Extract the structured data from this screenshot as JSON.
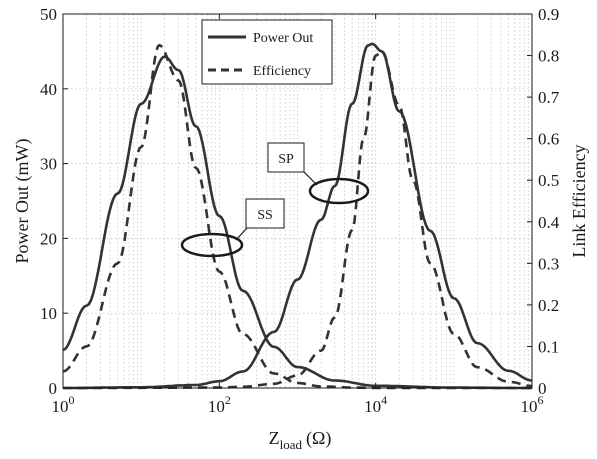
{
  "chart_data": {
    "type": "line",
    "xscale": "log",
    "xlim": [
      1,
      1000000
    ],
    "ylim_left": [
      0,
      50
    ],
    "ylim_right": [
      0,
      0.9
    ],
    "xlabel": "Z",
    "xlabel_sub": "load",
    "xlabel_unit": "(Ω)",
    "ylabel_left": "Power Out (mW)",
    "ylabel_right": "Link Efficiency",
    "x_ticks": [
      {
        "value": 1,
        "base": "10",
        "exp": "0"
      },
      {
        "value": 100,
        "base": "10",
        "exp": "2"
      },
      {
        "value": 10000,
        "base": "10",
        "exp": "4"
      },
      {
        "value": 1000000,
        "base": "10",
        "exp": "6"
      }
    ],
    "y_ticks_left": [
      {
        "value": 0,
        "label": "0"
      },
      {
        "value": 10,
        "label": "10"
      },
      {
        "value": 20,
        "label": "20"
      },
      {
        "value": 30,
        "label": "30"
      },
      {
        "value": 40,
        "label": "40"
      },
      {
        "value": 50,
        "label": "50"
      }
    ],
    "y_ticks_right": [
      {
        "value": 0,
        "label": "0"
      },
      {
        "value": 0.1,
        "label": "0.1"
      },
      {
        "value": 0.2,
        "label": "0.2"
      },
      {
        "value": 0.3,
        "label": "0.3"
      },
      {
        "value": 0.4,
        "label": "0.4"
      },
      {
        "value": 0.5,
        "label": "0.5"
      },
      {
        "value": 0.6,
        "label": "0.6"
      },
      {
        "value": 0.7,
        "label": "0.7"
      },
      {
        "value": 0.8,
        "label": "0.8"
      },
      {
        "value": 0.9,
        "label": "0.9"
      }
    ],
    "grid": true,
    "legend": {
      "position": "top-center",
      "entries": [
        {
          "label": "Power Out",
          "style": "solid"
        },
        {
          "label": "Efficiency",
          "style": "dashed"
        }
      ]
    },
    "annotations": [
      {
        "label": "SS",
        "target_x": 70,
        "target_y_left": 19.3
      },
      {
        "label": "SP",
        "target_x": 3200,
        "target_y_left": 26.5
      }
    ],
    "series": [
      {
        "name": "Power Out",
        "group": "SS",
        "axis": "left",
        "style": "solid",
        "x": [
          1,
          2,
          5,
          10,
          20,
          30,
          50,
          100,
          200,
          500,
          1000,
          3000,
          10000,
          100000,
          1000000
        ],
        "y": [
          5.1,
          11,
          26,
          38,
          44.3,
          42.5,
          35,
          23,
          13,
          5.5,
          2.8,
          1.0,
          0.3,
          0.05,
          0.0
        ]
      },
      {
        "name": "Efficiency",
        "group": "SS",
        "axis": "right",
        "style": "dashed",
        "x": [
          1,
          2,
          5,
          10,
          17,
          30,
          50,
          100,
          200,
          500,
          1000,
          2000,
          5000,
          10000,
          100000,
          1000000
        ],
        "y": [
          0.04,
          0.1,
          0.3,
          0.58,
          0.825,
          0.74,
          0.53,
          0.28,
          0.13,
          0.035,
          0.012,
          0.004,
          0.001,
          0.0,
          0.0,
          0.0
        ]
      },
      {
        "name": "Power Out",
        "group": "SP",
        "axis": "left",
        "style": "solid",
        "x": [
          1,
          10,
          50,
          100,
          200,
          500,
          1000,
          2000,
          3000,
          5000,
          8000,
          9000,
          12000,
          20000,
          50000,
          100000,
          200000,
          500000,
          1000000
        ],
        "y": [
          0.0,
          0.1,
          0.4,
          0.9,
          2.2,
          7.5,
          14.5,
          22.5,
          27,
          38,
          45.8,
          46,
          45,
          37,
          21,
          12,
          6,
          2.3,
          1.0
        ]
      },
      {
        "name": "Efficiency",
        "group": "SP",
        "axis": "right",
        "style": "dashed",
        "x": [
          1,
          100,
          200,
          500,
          1000,
          2000,
          3000,
          5000,
          7000,
          10000,
          12000,
          20000,
          30000,
          50000,
          100000,
          200000,
          500000,
          1000000
        ],
        "y": [
          0.0,
          0.001,
          0.003,
          0.01,
          0.03,
          0.09,
          0.17,
          0.38,
          0.6,
          0.8,
          0.81,
          0.68,
          0.5,
          0.3,
          0.13,
          0.05,
          0.015,
          0.005
        ]
      }
    ]
  }
}
